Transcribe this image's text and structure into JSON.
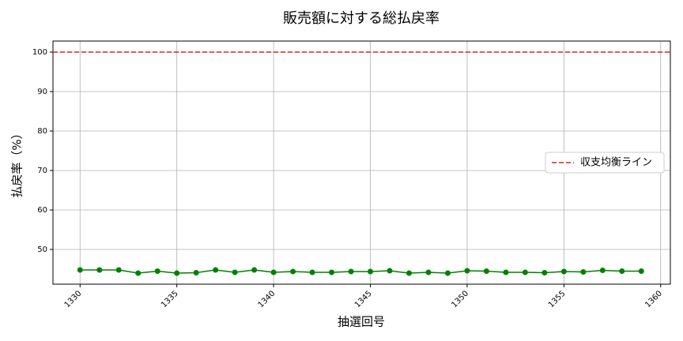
{
  "chart_data": {
    "type": "line",
    "title": "販売額に対する総払戻率",
    "x_label": "抽選回号",
    "y_label": "払戻率（%）",
    "x": [
      1330,
      1331,
      1332,
      1333,
      1334,
      1335,
      1336,
      1337,
      1338,
      1339,
      1340,
      1341,
      1342,
      1343,
      1344,
      1345,
      1346,
      1347,
      1348,
      1349,
      1350,
      1351,
      1352,
      1353,
      1354,
      1355,
      1356,
      1357,
      1358,
      1359
    ],
    "series": [
      {
        "color": "#008000",
        "values": [
          44.8,
          44.8,
          44.8,
          44.0,
          44.5,
          44.0,
          44.1,
          44.8,
          44.2,
          44.8,
          44.2,
          44.4,
          44.2,
          44.2,
          44.4,
          44.4,
          44.6,
          44.0,
          44.2,
          44.0,
          44.6,
          44.5,
          44.2,
          44.2,
          44.1,
          44.4,
          44.3,
          44.7,
          44.5,
          44.5
        ]
      }
    ],
    "reference_lines": [
      {
        "value": 100,
        "label": "収支均衡ライン",
        "color": "#d62728"
      }
    ],
    "xlim": [
      1328.6,
      1360.5
    ],
    "xticks": [
      1330,
      1335,
      1340,
      1345,
      1350,
      1355,
      1360
    ],
    "ylim": [
      41.2,
      102.8
    ],
    "yticks": [
      50,
      60,
      70,
      80,
      90,
      100
    ],
    "grid": true,
    "legend_position": "center right"
  }
}
